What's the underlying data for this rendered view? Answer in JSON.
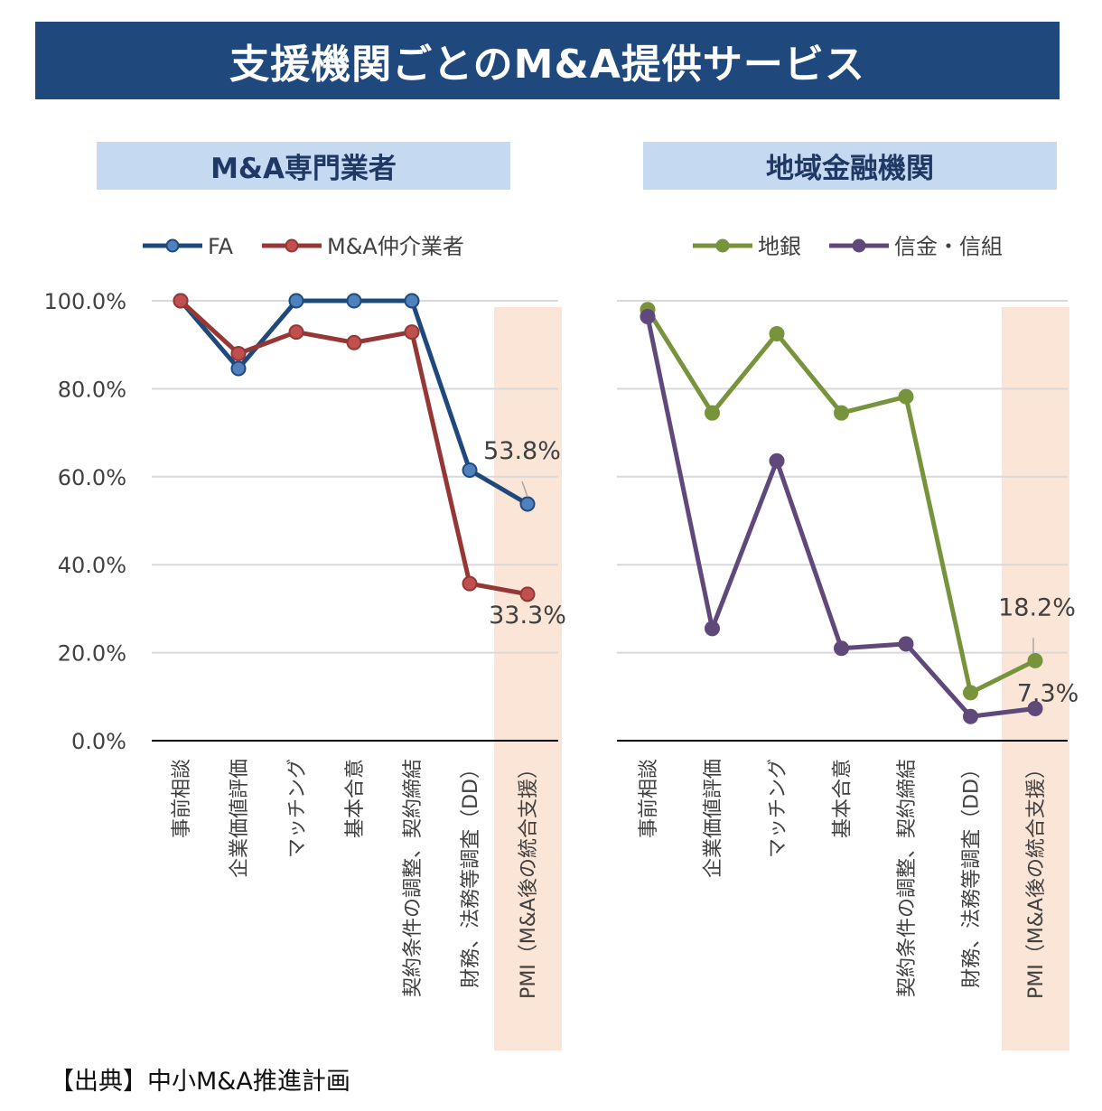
{
  "title": "支援機関ごとのM&A提供サービス",
  "source": "【出典】中小M&A推進計画",
  "chart_data": [
    {
      "type": "line",
      "panel_title": "M&A専門業者",
      "categories": [
        "事前相談",
        "企業価値評価",
        "マッチング",
        "基本合意",
        "契約条件の調整、契約締結",
        "財務、法務等調査（DD）",
        "PMI（M&A後の統合支援）"
      ],
      "highlight_category": "PMI（M&A後の統合支援）",
      "highlight_color": "#fbe5d6",
      "ylim": [
        0,
        100
      ],
      "yticks": [
        "0.0%",
        "20.0%",
        "40.0%",
        "60.0%",
        "80.0%",
        "100.0%"
      ],
      "series": [
        {
          "name": "FA",
          "color": "#1f497d",
          "fill": "#4f81bd",
          "values": [
            100,
            84.6,
            100,
            100,
            100,
            61.5,
            53.8
          ]
        },
        {
          "name": "M&A仲介業者",
          "color": "#953735",
          "fill": "#c0504d",
          "values": [
            100,
            88.0,
            92.9,
            90.5,
            92.9,
            35.7,
            33.3
          ]
        }
      ],
      "annotations": [
        {
          "series": 0,
          "index": 6,
          "text": "53.8%"
        },
        {
          "series": 1,
          "index": 6,
          "text": "33.3%"
        }
      ]
    },
    {
      "type": "line",
      "panel_title": "地域金融機関",
      "categories": [
        "事前相談",
        "企業価値評価",
        "マッチング",
        "基本合意",
        "契約条件の調整、契約締結",
        "財務、法務等調査（DD）",
        "PMI（M&A後の統合支援）"
      ],
      "highlight_category": "PMI（M&A後の統合支援）",
      "highlight_color": "#fbe5d6",
      "ylim": [
        0,
        100
      ],
      "yticks": [
        "0.0%",
        "20.0%",
        "40.0%",
        "60.0%",
        "80.0%",
        "100.0%"
      ],
      "series": [
        {
          "name": "地銀",
          "color": "#77933c",
          "fill": "#77933c",
          "values": [
            98.0,
            74.5,
            92.5,
            74.5,
            78.2,
            10.9,
            18.2
          ]
        },
        {
          "name": "信金・信組",
          "color": "#5f497a",
          "fill": "#5f497a",
          "values": [
            96.4,
            25.5,
            63.6,
            21.0,
            22.0,
            5.5,
            7.3
          ]
        }
      ],
      "annotations": [
        {
          "series": 0,
          "index": 6,
          "text": "18.2%"
        },
        {
          "series": 1,
          "index": 6,
          "text": "7.3%"
        }
      ]
    }
  ]
}
